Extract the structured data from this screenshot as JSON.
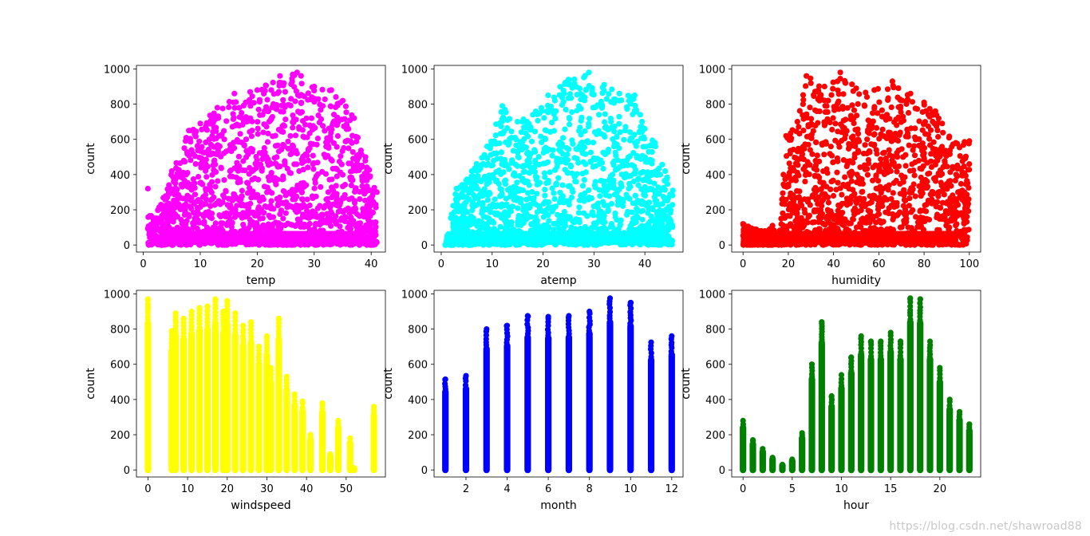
{
  "chart_data": [
    {
      "type": "scatter",
      "xlabel": "temp",
      "ylabel": "count",
      "color": "#ff00ff",
      "xlim": [
        -1.2,
        42.5
      ],
      "ylim": [
        -40,
        1020
      ],
      "xticks": [
        0,
        10,
        20,
        30,
        40
      ],
      "yticks": [
        0,
        200,
        400,
        600,
        800,
        1000
      ],
      "kind": "continuous",
      "envelope": [
        [
          0.8,
          320
        ],
        [
          2,
          150
        ],
        [
          5,
          420
        ],
        [
          8,
          650
        ],
        [
          10,
          690
        ],
        [
          13,
          780
        ],
        [
          16,
          860
        ],
        [
          20,
          880
        ],
        [
          24,
          960
        ],
        [
          27,
          980
        ],
        [
          30,
          900
        ],
        [
          33,
          880
        ],
        [
          35,
          820
        ],
        [
          37,
          720
        ],
        [
          39,
          500
        ],
        [
          41,
          300
        ]
      ],
      "grid": false
    },
    {
      "type": "scatter",
      "xlabel": "atemp",
      "ylabel": "count",
      "color": "#00ffff",
      "xlim": [
        -1.4,
        47.5
      ],
      "ylim": [
        -40,
        1020
      ],
      "xticks": [
        0,
        10,
        20,
        30,
        40
      ],
      "yticks": [
        0,
        200,
        400,
        600,
        800,
        1000
      ],
      "kind": "continuous",
      "envelope": [
        [
          0.8,
          0
        ],
        [
          3,
          320
        ],
        [
          6,
          420
        ],
        [
          9,
          560
        ],
        [
          12,
          790
        ],
        [
          15,
          700
        ],
        [
          18,
          740
        ],
        [
          21,
          850
        ],
        [
          25,
          940
        ],
        [
          29,
          980
        ],
        [
          32,
          910
        ],
        [
          35,
          860
        ],
        [
          38,
          850
        ],
        [
          40,
          660
        ],
        [
          42,
          580
        ],
        [
          44,
          420
        ],
        [
          45.5,
          310
        ]
      ],
      "grid": false
    },
    {
      "type": "scatter",
      "xlabel": "humidity",
      "ylabel": "count",
      "color": "#ff0000",
      "xlim": [
        -5,
        105
      ],
      "ylim": [
        -40,
        1020
      ],
      "xticks": [
        0,
        20,
        40,
        60,
        80,
        100
      ],
      "yticks": [
        0,
        200,
        400,
        600,
        800,
        1000
      ],
      "kind": "continuous",
      "envelope": [
        [
          0,
          120
        ],
        [
          8,
          80
        ],
        [
          13,
          110
        ],
        [
          16,
          40
        ],
        [
          19,
          620
        ],
        [
          24,
          700
        ],
        [
          28,
          960
        ],
        [
          36,
          900
        ],
        [
          43,
          980
        ],
        [
          50,
          890
        ],
        [
          58,
          880
        ],
        [
          66,
          930
        ],
        [
          74,
          860
        ],
        [
          80,
          810
        ],
        [
          85,
          760
        ],
        [
          88,
          690
        ],
        [
          94,
          580
        ],
        [
          100,
          590
        ]
      ],
      "grid": false
    },
    {
      "type": "scatter",
      "xlabel": "windspeed",
      "ylabel": "count",
      "color": "#ffff00",
      "xlim": [
        -2.9,
        59.9
      ],
      "ylim": [
        -40,
        1020
      ],
      "xticks": [
        0,
        10,
        20,
        30,
        40,
        50
      ],
      "yticks": [
        0,
        200,
        400,
        600,
        800,
        1000
      ],
      "kind": "discrete",
      "columns": [
        [
          0,
          970
        ],
        [
          6,
          790
        ],
        [
          7,
          890
        ],
        [
          9,
          860
        ],
        [
          11,
          900
        ],
        [
          13,
          920
        ],
        [
          15,
          930
        ],
        [
          17,
          970
        ],
        [
          19,
          900
        ],
        [
          20,
          960
        ],
        [
          22,
          890
        ],
        [
          24,
          820
        ],
        [
          26,
          840
        ],
        [
          28,
          700
        ],
        [
          30,
          760
        ],
        [
          31,
          580
        ],
        [
          33,
          860
        ],
        [
          35,
          530
        ],
        [
          37,
          430
        ],
        [
          39,
          390
        ],
        [
          41,
          200
        ],
        [
          44,
          380
        ],
        [
          46,
          90
        ],
        [
          48,
          280
        ],
        [
          51,
          180
        ],
        [
          52,
          10
        ],
        [
          57,
          360
        ]
      ],
      "grid": false
    },
    {
      "type": "scatter",
      "xlabel": "month",
      "ylabel": "count",
      "color": "#0000ff",
      "xlim": [
        0.45,
        12.55
      ],
      "ylim": [
        -40,
        1020
      ],
      "xticks": [
        2,
        4,
        6,
        8,
        10,
        12
      ],
      "yticks": [
        0,
        200,
        400,
        600,
        800,
        1000
      ],
      "kind": "discrete",
      "columns": [
        [
          1,
          515
        ],
        [
          2,
          535
        ],
        [
          3,
          800
        ],
        [
          4,
          820
        ],
        [
          5,
          875
        ],
        [
          6,
          870
        ],
        [
          7,
          875
        ],
        [
          8,
          900
        ],
        [
          9,
          975
        ],
        [
          10,
          950
        ],
        [
          11,
          725
        ],
        [
          12,
          760
        ]
      ],
      "grid": false
    },
    {
      "type": "scatter",
      "xlabel": "hour",
      "ylabel": "count",
      "color": "#008000",
      "xlim": [
        -1.15,
        24.15
      ],
      "ylim": [
        -40,
        1020
      ],
      "xticks": [
        0,
        5,
        10,
        15,
        20
      ],
      "yticks": [
        0,
        200,
        400,
        600,
        800,
        1000
      ],
      "kind": "discrete",
      "columns": [
        [
          0,
          280
        ],
        [
          1,
          170
        ],
        [
          2,
          120
        ],
        [
          3,
          70
        ],
        [
          4,
          30
        ],
        [
          5,
          60
        ],
        [
          6,
          210
        ],
        [
          7,
          600
        ],
        [
          8,
          840
        ],
        [
          9,
          420
        ],
        [
          10,
          540
        ],
        [
          11,
          640
        ],
        [
          12,
          760
        ],
        [
          13,
          730
        ],
        [
          14,
          730
        ],
        [
          15,
          780
        ],
        [
          16,
          730
        ],
        [
          17,
          975
        ],
        [
          18,
          970
        ],
        [
          19,
          730
        ],
        [
          20,
          580
        ],
        [
          21,
          400
        ],
        [
          22,
          330
        ],
        [
          23,
          260
        ]
      ],
      "grid": false
    }
  ],
  "watermark": "https://blog.csdn.net/shawroad88"
}
